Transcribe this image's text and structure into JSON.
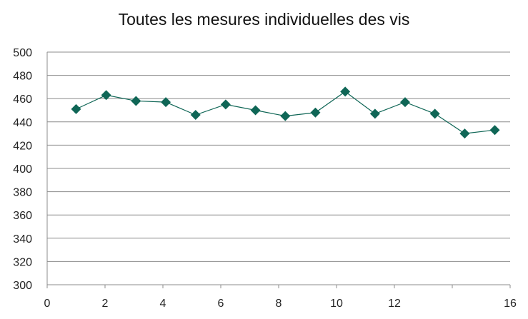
{
  "chart_data": {
    "type": "line",
    "title": "Toutes les mesures individuelles des vis",
    "xlabel": "",
    "ylabel": "",
    "xlim": [
      0,
      16
    ],
    "ylim": [
      300,
      500
    ],
    "x_ticks": [
      0,
      2,
      4,
      6,
      8,
      10,
      12,
      16
    ],
    "x_ticks_all": [
      0,
      2,
      4,
      6,
      8,
      10,
      12,
      14,
      16
    ],
    "y_ticks": [
      300,
      320,
      340,
      360,
      380,
      400,
      420,
      440,
      460,
      480,
      500
    ],
    "grid": true,
    "legend": "none",
    "series": [
      {
        "color": "#0f6656",
        "marker": "diamond",
        "x": [
          1.0,
          2.04,
          3.07,
          4.1,
          5.13,
          6.17,
          7.2,
          8.23,
          9.27,
          10.3,
          11.33,
          12.37,
          13.4,
          14.43,
          15.47
        ],
        "y": [
          451,
          463,
          458,
          457,
          446,
          455,
          450,
          445,
          448,
          466,
          447,
          457,
          447,
          430,
          433
        ]
      }
    ]
  }
}
